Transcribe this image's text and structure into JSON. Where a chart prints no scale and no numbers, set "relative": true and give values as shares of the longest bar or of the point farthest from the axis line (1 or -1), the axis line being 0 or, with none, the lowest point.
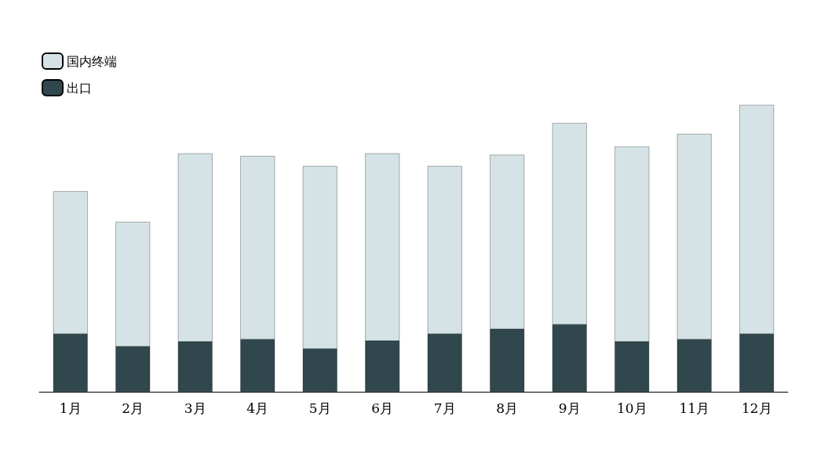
{
  "chart_data": {
    "type": "bar",
    "relative": true,
    "stacked": true,
    "legend": "top left",
    "categories": [
      "1月",
      "2月",
      "3月",
      "4月",
      "5月",
      "6月",
      "7月",
      "8月",
      "9月",
      "10月",
      "11月",
      "12月"
    ],
    "series": [
      {
        "name": "出口",
        "color": "#2f474d",
        "values": [
          0.202,
          0.158,
          0.175,
          0.183,
          0.15,
          0.178,
          0.202,
          0.219,
          0.235,
          0.175,
          0.183,
          0.202
        ]
      },
      {
        "name": "国内终端",
        "color": "#d5e3e6",
        "values": [
          0.497,
          0.434,
          0.656,
          0.639,
          0.637,
          0.653,
          0.585,
          0.607,
          0.702,
          0.68,
          0.716,
          0.798
        ]
      }
    ]
  }
}
